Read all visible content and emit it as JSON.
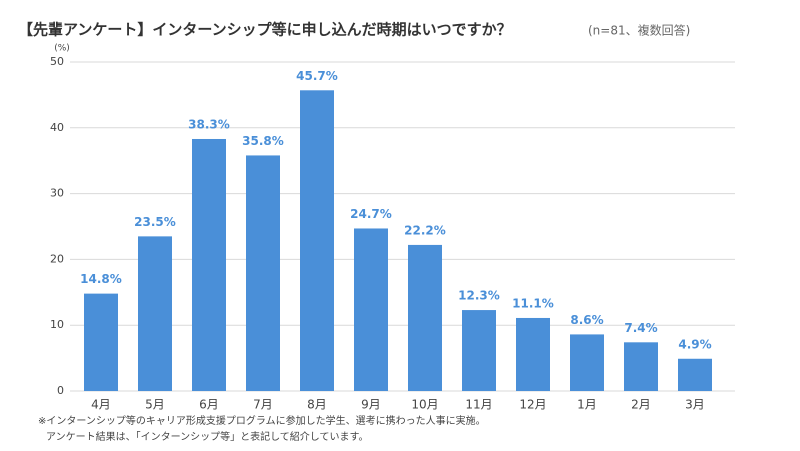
{
  "chart_data": {
    "type": "bar",
    "title": "【先輩アンケート】インターンシップ等に申し込んだ時期はいつですか？",
    "subtitle": "(n=81、複数回答)",
    "y_unit": "(%)",
    "categories": [
      "4月",
      "5月",
      "6月",
      "7月",
      "8月",
      "9月",
      "10月",
      "11月",
      "12月",
      "1月",
      "2月",
      "3月"
    ],
    "values": [
      14.8,
      23.5,
      38.3,
      35.8,
      45.7,
      24.7,
      22.2,
      12.3,
      11.1,
      8.6,
      7.4,
      4.9
    ],
    "value_labels": [
      "14.8%",
      "23.5%",
      "38.3%",
      "35.8%",
      "45.7%",
      "24.7%",
      "22.2%",
      "12.3%",
      "11.1%",
      "8.6%",
      "7.4%",
      "4.9%"
    ],
    "color": "#4a8fd8",
    "ylim": [
      0,
      50
    ],
    "yticks": [
      0,
      10,
      20,
      30,
      40,
      50
    ],
    "grid": true,
    "notes": [
      "※インターンシップ等のキャリア形成支援プログラムに参加した学生、選考に携わった人事に実施。",
      "アンケート結果は、「インターンシップ等」と表記して紹介しています。"
    ]
  }
}
